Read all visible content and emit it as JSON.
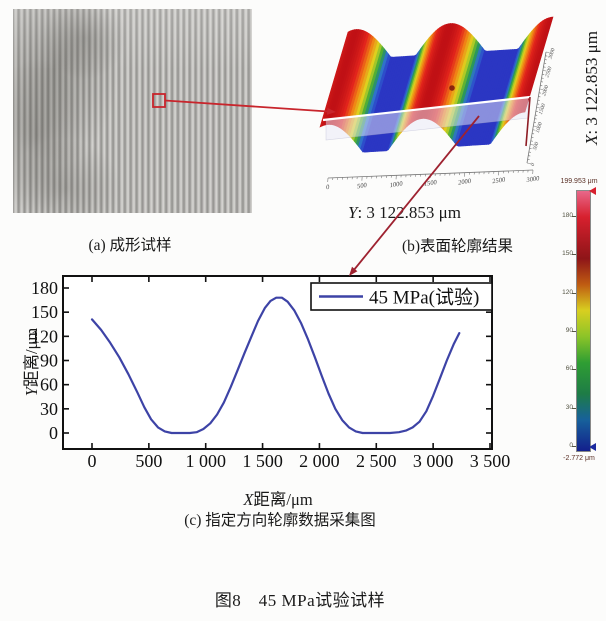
{
  "panel_a": {
    "caption": "(a) 成形试样"
  },
  "panel_b": {
    "caption": "(b)表面轮廓结果",
    "y_axis_prefix": "Y",
    "y_axis_rest": ": 3 122.853 μm",
    "x_axis_prefix": "X",
    "x_axis_rest": ": 3 122.853 μm",
    "bottom_ticks": [
      "0",
      "500",
      "1000",
      "1500",
      "2000",
      "2500",
      "3000"
    ],
    "right_ticks": [
      "0",
      "500",
      "1000",
      "1500",
      "2000",
      "2500",
      "3000"
    ],
    "surface": {
      "crests": [
        0.04,
        0.5,
        1.0
      ],
      "halfwidth": 0.17,
      "amplitude": 30,
      "near_a": [
        20,
        150
      ],
      "near_b": [
        225,
        137
      ],
      "extrude": [
        28,
        -95
      ],
      "colormap": [
        [
          0,
          "#2b36c3"
        ],
        [
          0.15,
          "#2f6fd3"
        ],
        [
          0.3,
          "#2aa23c"
        ],
        [
          0.5,
          "#ddd81f"
        ],
        [
          0.68,
          "#f08415"
        ],
        [
          0.85,
          "#e3251c"
        ],
        [
          1,
          "#c01015"
        ]
      ]
    },
    "colorbar": {
      "max_label": "199.953 μm",
      "min_label": "-2.772 μm",
      "max_value": 199.953,
      "min_value": -2.772,
      "tick_values": [
        180,
        150,
        120,
        90,
        60,
        30,
        0
      ],
      "tick_labels": [
        "180",
        "150",
        "120",
        "90",
        "60",
        "30",
        "0"
      ],
      "gradient": [
        [
          0,
          "#e8688a"
        ],
        [
          0.1,
          "#d7202e"
        ],
        [
          0.26,
          "#8e1518"
        ],
        [
          0.36,
          "#bf5c12"
        ],
        [
          0.46,
          "#d8cf20"
        ],
        [
          0.56,
          "#8cc428"
        ],
        [
          0.66,
          "#2f9e33"
        ],
        [
          0.78,
          "#1e7c46"
        ],
        [
          0.88,
          "#17619b"
        ],
        [
          1,
          "#131f8c"
        ]
      ]
    }
  },
  "panel_c": {
    "caption": "(c) 指定方向轮廓数据采集图",
    "xlabel_prefix": "X",
    "xlabel_rest": "距离/μm",
    "ylabel_prefix": "Y",
    "ylabel_rest": "距离/μm",
    "legend_label": "45 MPa(试验)"
  },
  "figure_caption": "图8　45 MPa试验试样",
  "annotations": {
    "square_color": "#c8252c",
    "arrow1_color": "#c8252c",
    "arrow2_color": "#9e2230"
  },
  "chart_data": {
    "type": "line",
    "title": "",
    "xlabel": "X距离/μm",
    "ylabel": "Y距离/μm",
    "xlim": [
      0,
      3500
    ],
    "ylim": [
      0,
      180
    ],
    "xtick_values": [
      0,
      500,
      1000,
      1500,
      2000,
      2500,
      3000,
      3500
    ],
    "xtick_labels": [
      "0",
      "500",
      "1 000",
      "1 500",
      "2 000",
      "2 500",
      "3 000",
      "3 500"
    ],
    "ytick_values": [
      0,
      30,
      60,
      90,
      120,
      150,
      180
    ],
    "ytick_labels": [
      "0",
      "30",
      "60",
      "90",
      "120",
      "150",
      "180"
    ],
    "legend_position": "top-right",
    "line_color": "#3d43a6",
    "series": [
      {
        "name": "45 MPa(试验)",
        "points": [
          [
            0,
            141
          ],
          [
            80,
            128
          ],
          [
            160,
            112
          ],
          [
            240,
            94
          ],
          [
            320,
            73
          ],
          [
            400,
            50
          ],
          [
            460,
            32
          ],
          [
            520,
            17
          ],
          [
            580,
            7
          ],
          [
            640,
            2
          ],
          [
            700,
            0
          ],
          [
            780,
            0
          ],
          [
            860,
            0
          ],
          [
            920,
            1
          ],
          [
            980,
            5
          ],
          [
            1040,
            12
          ],
          [
            1100,
            23
          ],
          [
            1160,
            38
          ],
          [
            1220,
            57
          ],
          [
            1280,
            78
          ],
          [
            1340,
            99
          ],
          [
            1400,
            119
          ],
          [
            1460,
            139
          ],
          [
            1520,
            155
          ],
          [
            1570,
            164
          ],
          [
            1620,
            168
          ],
          [
            1670,
            168
          ],
          [
            1720,
            163
          ],
          [
            1780,
            152
          ],
          [
            1840,
            136
          ],
          [
            1900,
            116
          ],
          [
            1960,
            94
          ],
          [
            2020,
            71
          ],
          [
            2080,
            49
          ],
          [
            2140,
            30
          ],
          [
            2200,
            16
          ],
          [
            2260,
            7
          ],
          [
            2320,
            2
          ],
          [
            2380,
            0
          ],
          [
            2460,
            0
          ],
          [
            2540,
            0
          ],
          [
            2620,
            0
          ],
          [
            2700,
            1
          ],
          [
            2760,
            3
          ],
          [
            2820,
            7
          ],
          [
            2880,
            14
          ],
          [
            2940,
            27
          ],
          [
            3000,
            46
          ],
          [
            3060,
            68
          ],
          [
            3120,
            90
          ],
          [
            3180,
            110
          ],
          [
            3230,
            124
          ]
        ]
      }
    ]
  }
}
